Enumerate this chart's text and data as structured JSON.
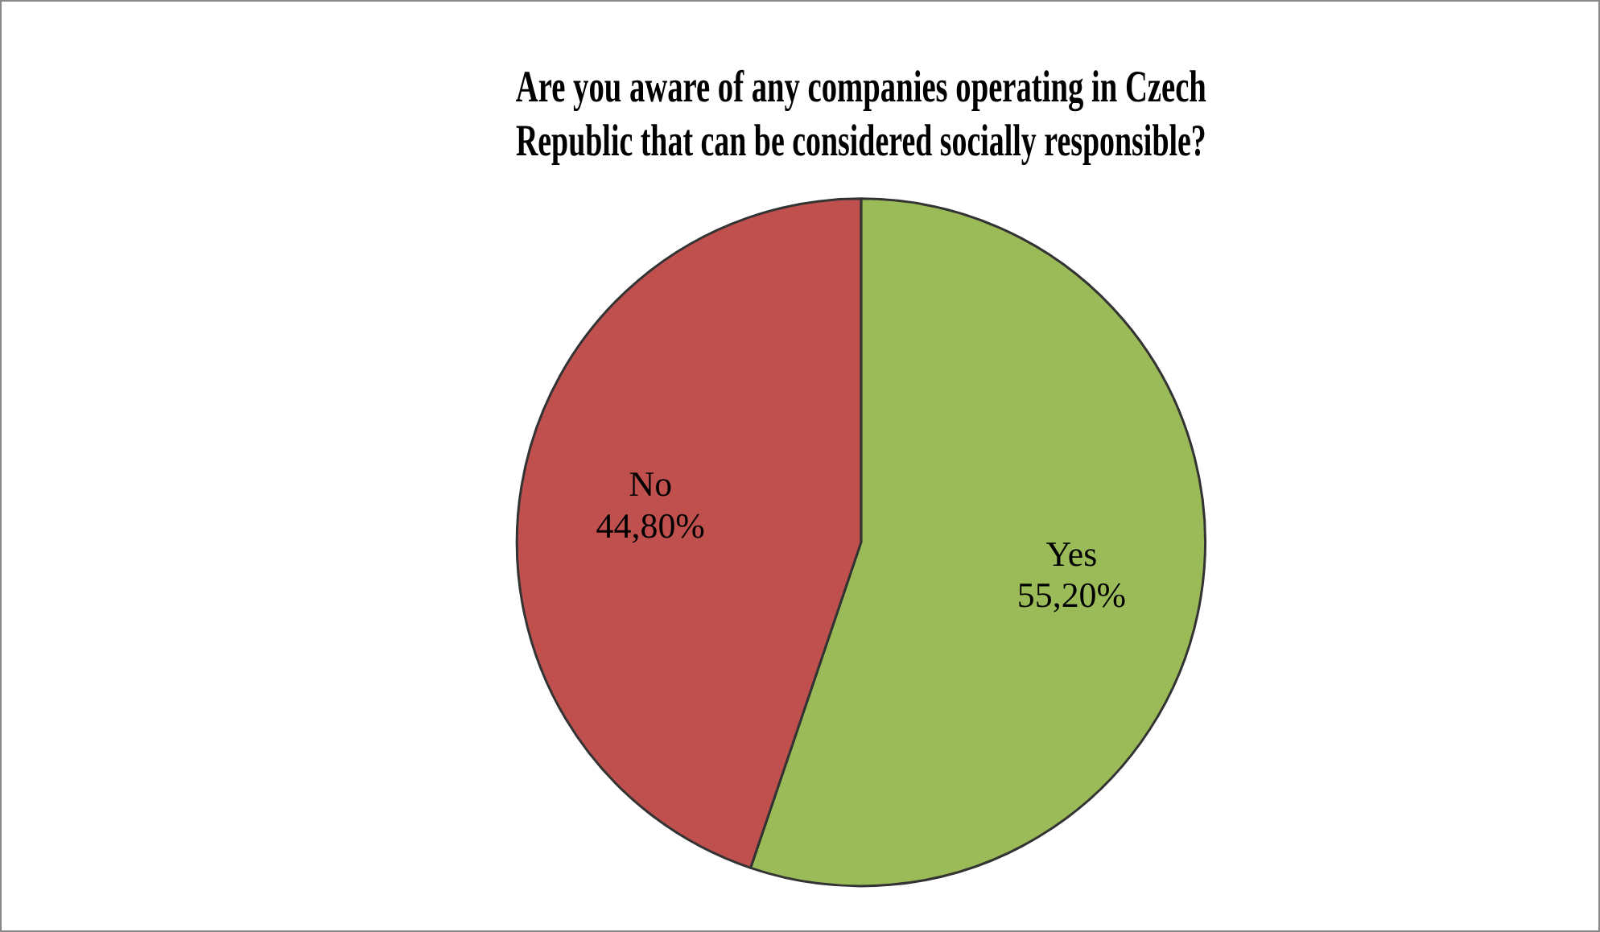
{
  "chart_data": {
    "type": "pie",
    "title": "Are you aware of any companies operating in Czech Republic that can be considered socially responsible?",
    "categories": [
      "Yes",
      "No"
    ],
    "values": [
      55.2,
      44.8
    ],
    "colors": [
      "#9bbb59",
      "#c0504d"
    ],
    "value_labels": [
      "55,20%",
      "44,80%"
    ],
    "legend": false
  }
}
